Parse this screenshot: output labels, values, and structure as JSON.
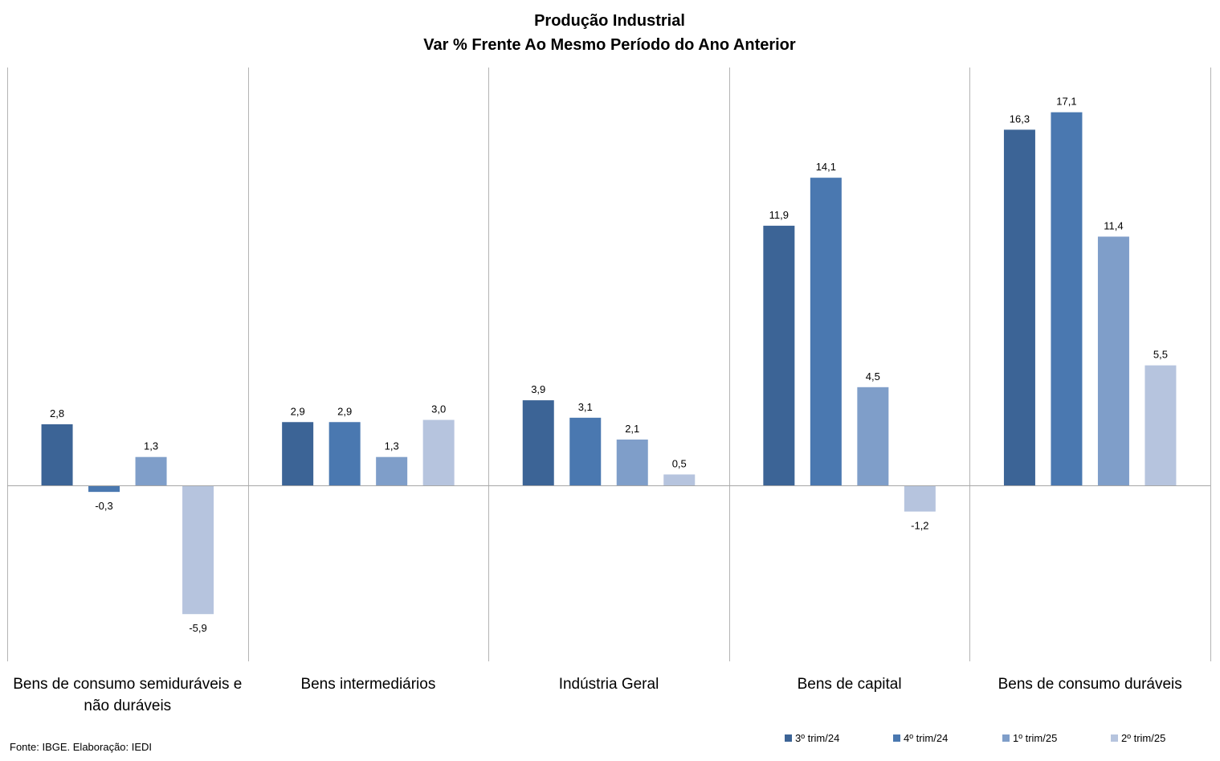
{
  "chart_data": {
    "type": "bar",
    "title": "Produção Industrial",
    "subtitle": "Var % Frente Ao Mesmo Período do Ano Anterior",
    "categories": [
      [
        "Bens de consumo semiduráveis e",
        "não duráveis"
      ],
      [
        "Bens intermediários"
      ],
      [
        "Indústria Geral"
      ],
      [
        "Bens de capital"
      ],
      [
        "Bens de consumo duráveis"
      ]
    ],
    "series": [
      {
        "name": "3º trim/24",
        "color": "#3c6496",
        "values": [
          2.8,
          2.9,
          3.9,
          11.9,
          16.3
        ]
      },
      {
        "name": "4º trim/24",
        "color": "#4a78b0",
        "values": [
          -0.3,
          2.9,
          3.1,
          14.1,
          17.1
        ]
      },
      {
        "name": "1º trim/25",
        "color": "#7f9ec9",
        "values": [
          1.3,
          1.3,
          2.1,
          4.5,
          11.4
        ]
      },
      {
        "name": "2º trim/25",
        "color": "#b6c4de",
        "values": [
          -5.9,
          3.0,
          0.5,
          -1.2,
          5.5
        ]
      }
    ],
    "ylim": [
      -8,
      19
    ],
    "decimal_separator": ",",
    "legend_position": "bottom-right",
    "grid": false
  },
  "source": "Fonte: IBGE. Elaboração: IEDI"
}
